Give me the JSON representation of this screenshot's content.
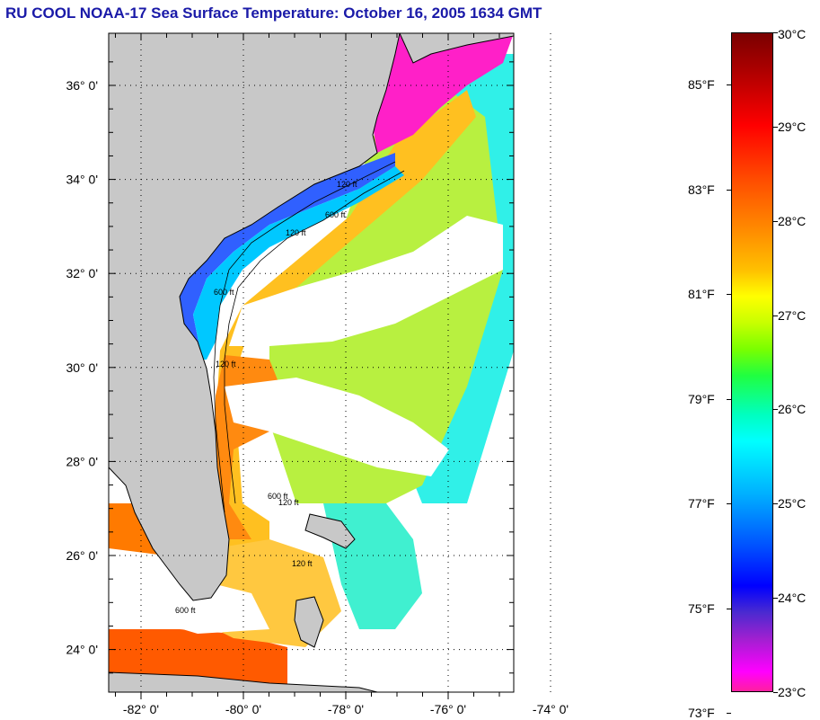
{
  "title": "RU COOL  NOAA-17  Sea Surface Temperature:  October 16, 2005 1634 GMT",
  "map": {
    "lat_labels": [
      {
        "lat": 36,
        "text": "36° 0'"
      },
      {
        "lat": 34,
        "text": "34° 0'"
      },
      {
        "lat": 32,
        "text": "32° 0'"
      },
      {
        "lat": 30,
        "text": "30° 0'"
      },
      {
        "lat": 28,
        "text": "28° 0'"
      },
      {
        "lat": 26,
        "text": "26° 0'"
      },
      {
        "lat": 24,
        "text": "24° 0'"
      }
    ],
    "lon_labels": [
      {
        "lon": -82,
        "text": "-82° 0'"
      },
      {
        "lon": -80,
        "text": "-80° 0'"
      },
      {
        "lon": -78,
        "text": "-78° 0'"
      },
      {
        "lon": -76,
        "text": "-76° 0'"
      },
      {
        "lon": -74,
        "text": "-74° 0'"
      }
    ],
    "contour_labels": [
      "120 ft",
      "600 ft"
    ],
    "colors": {
      "land": "#c8c8c8",
      "cloud": "#ffffff",
      "hot": "#ff6a00",
      "warm": "#ffd000",
      "mild": "#b8ff20",
      "cool": "#00e0ff",
      "cold": "#0020ff",
      "coldest": "#ff20c8"
    }
  },
  "colorbar": {
    "celsius": [
      "30°C",
      "29°C",
      "28°C",
      "27°C",
      "26°C",
      "25°C",
      "24°C",
      "23°C"
    ],
    "fahrenheit": [
      "85°F",
      "83°F",
      "81°F",
      "79°F",
      "77°F",
      "75°F",
      "73°F"
    ]
  }
}
